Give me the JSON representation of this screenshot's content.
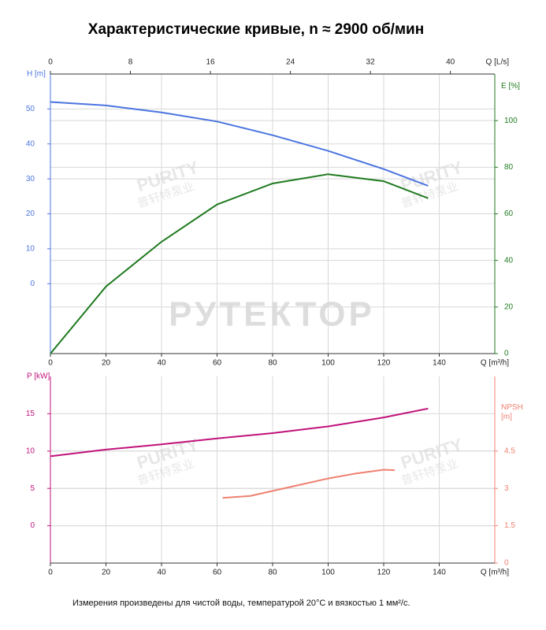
{
  "title": "Характеристические кривые, n ≈ 2900 об/мин",
  "footnote": "Измерения произведены для чистой воды, температурой 20°C и вязкостью 1 мм²/с.",
  "watermarks": {
    "brand": "РУТЕКТОР",
    "logo": "PURITY",
    "logo_cn": "普轩特泵业"
  },
  "chart_data": [
    {
      "type": "line",
      "xlabel": "Q [m³/h]",
      "xlim": [
        0,
        160
      ],
      "xticks": [
        0,
        20,
        40,
        60,
        80,
        100,
        120,
        140
      ],
      "x2label": "Q [L/s]",
      "x2lim": [
        0,
        44.44
      ],
      "x2ticks": [
        0,
        8,
        16,
        24,
        32,
        40
      ],
      "ylabel": "H [m]",
      "ylim": [
        -20,
        60
      ],
      "yticks": [
        0,
        10,
        20,
        30,
        40,
        50
      ],
      "ycolor": "#4a74e0",
      "y2label": "E [%]",
      "y2lim": [
        0,
        120
      ],
      "y2ticks": [
        0,
        20,
        40,
        60,
        80,
        100
      ],
      "y2color": "#1f7a1f",
      "grid": true,
      "series": [
        {
          "name": "H",
          "color": "#4a74e0",
          "x": [
            0,
            20,
            40,
            60,
            80,
            100,
            120,
            136
          ],
          "values": [
            52,
            51,
            49,
            46.4,
            42.5,
            38,
            32.8,
            28
          ]
        },
        {
          "name": "E",
          "color": "#1f7a1f",
          "axis": "y2",
          "x": [
            0,
            20,
            40,
            60,
            80,
            100,
            120,
            136
          ],
          "values": [
            0,
            28.8,
            48,
            64,
            73,
            77,
            74,
            66.7
          ]
        }
      ]
    },
    {
      "type": "line",
      "xlabel": "Q [m³/h]",
      "xlim": [
        0,
        160
      ],
      "xticks": [
        0,
        20,
        40,
        60,
        80,
        100,
        120,
        140
      ],
      "ylabel": "P [kW]",
      "ylim": [
        -5,
        20
      ],
      "yticks": [
        0,
        5,
        10,
        15
      ],
      "ycolor": "#c0127a",
      "y2label": "NPSH [m]",
      "y2lim": [
        0,
        7.5
      ],
      "y2ticks": [
        0,
        1.5,
        3,
        4.5
      ],
      "y2color": "#f08070",
      "grid": true,
      "series": [
        {
          "name": "P",
          "color": "#c0127a",
          "x": [
            0,
            20,
            40,
            60,
            80,
            100,
            120,
            136
          ],
          "values": [
            9.3,
            10.2,
            10.9,
            11.7,
            12.4,
            13.3,
            14.5,
            15.7
          ]
        },
        {
          "name": "NPSH",
          "color": "#f08070",
          "axis": "y2",
          "x": [
            62,
            72,
            80,
            90,
            100,
            110,
            120,
            124
          ],
          "values": [
            2.62,
            2.7,
            2.9,
            3.15,
            3.4,
            3.6,
            3.75,
            3.73
          ]
        }
      ]
    }
  ]
}
